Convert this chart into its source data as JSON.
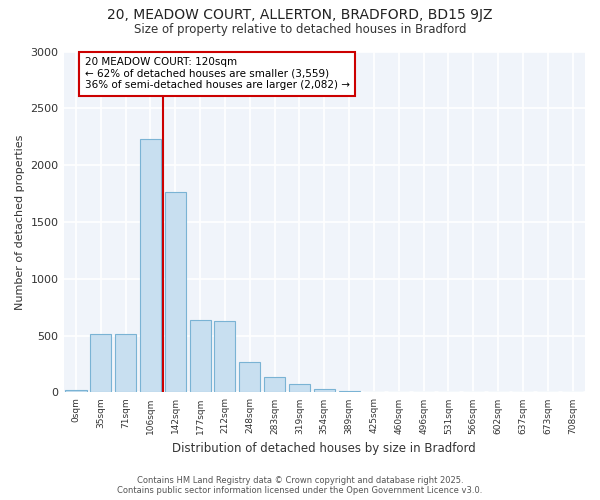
{
  "title1": "20, MEADOW COURT, ALLERTON, BRADFORD, BD15 9JZ",
  "title2": "Size of property relative to detached houses in Bradford",
  "xlabel": "Distribution of detached houses by size in Bradford",
  "ylabel": "Number of detached properties",
  "categories": [
    "0sqm",
    "35sqm",
    "71sqm",
    "106sqm",
    "142sqm",
    "177sqm",
    "212sqm",
    "248sqm",
    "283sqm",
    "319sqm",
    "354sqm",
    "389sqm",
    "425sqm",
    "460sqm",
    "496sqm",
    "531sqm",
    "566sqm",
    "602sqm",
    "637sqm",
    "673sqm",
    "708sqm"
  ],
  "values": [
    25,
    510,
    510,
    2230,
    1760,
    640,
    630,
    265,
    140,
    70,
    30,
    15,
    5,
    3,
    2,
    1,
    0,
    0,
    0,
    0,
    0
  ],
  "bar_color": "#c8dff0",
  "bar_edge_color": "#7ab3d4",
  "background_color": "#ffffff",
  "plot_bg_color": "#f0f4fa",
  "grid_color": "#ffffff",
  "vline_x": 3.5,
  "vline_color": "#cc0000",
  "annotation_text": "20 MEADOW COURT: 120sqm\n← 62% of detached houses are smaller (3,559)\n36% of semi-detached houses are larger (2,082) →",
  "annotation_box_color": "#ffffff",
  "annotation_box_edge": "#cc0000",
  "footer1": "Contains HM Land Registry data © Crown copyright and database right 2025.",
  "footer2": "Contains public sector information licensed under the Open Government Licence v3.0.",
  "ylim": [
    0,
    3000
  ],
  "yticks": [
    0,
    500,
    1000,
    1500,
    2000,
    2500,
    3000
  ]
}
